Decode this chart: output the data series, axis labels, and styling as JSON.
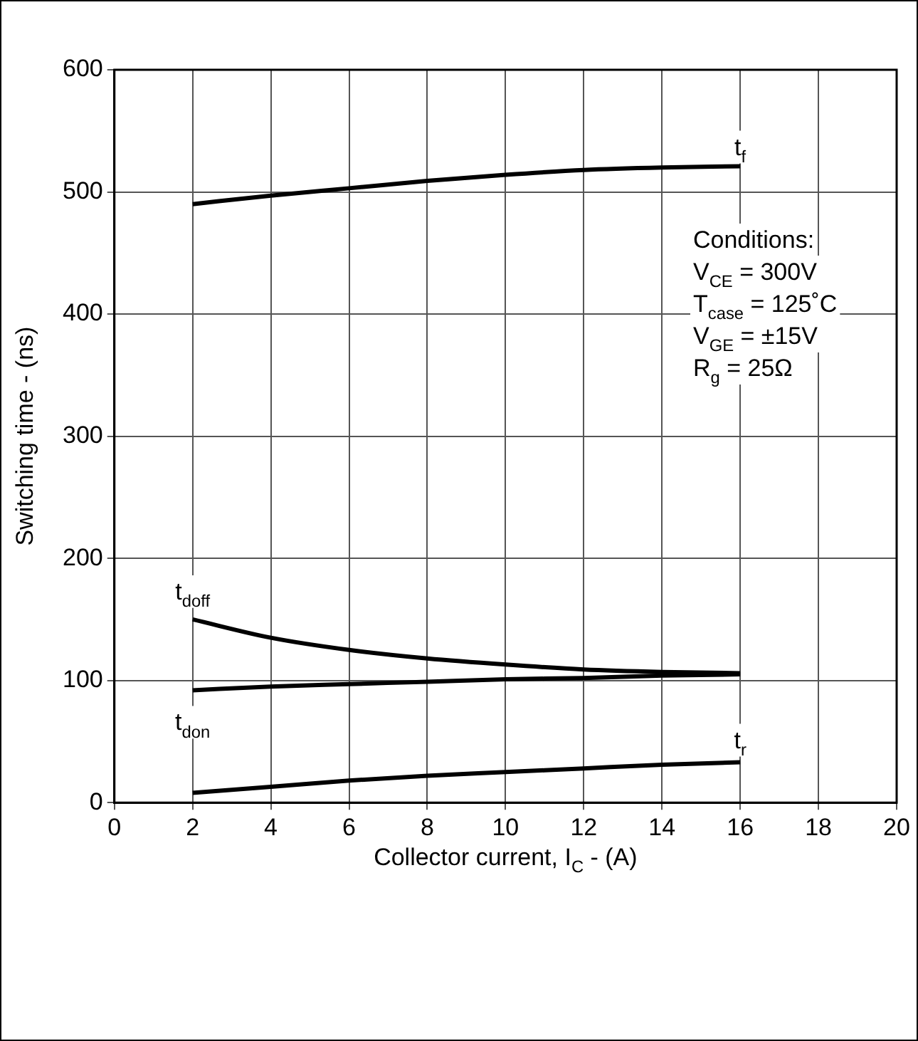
{
  "chart_data": {
    "type": "line",
    "xlabel": "Collector current, I$_{C}$ - (A)",
    "ylabel": "Switching time - (ns)",
    "x": [
      2,
      4,
      6,
      8,
      10,
      12,
      14,
      16
    ],
    "series": [
      {
        "name": "t$_{f}$",
        "color": "#000000",
        "values": [
          490,
          497,
          503,
          509,
          514,
          518,
          520,
          521
        ]
      },
      {
        "name": "t$_{doff}$",
        "color": "#000000",
        "values": [
          150,
          135,
          125,
          118,
          113,
          109,
          107,
          106
        ]
      },
      {
        "name": "t$_{don}$",
        "color": "#000000",
        "values": [
          92,
          95,
          97,
          99,
          101,
          102,
          104,
          105
        ]
      },
      {
        "name": "t$_{r}$",
        "color": "#000000",
        "values": [
          8,
          13,
          18,
          22,
          25,
          28,
          31,
          33
        ]
      }
    ],
    "xlim": [
      0,
      20
    ],
    "xticks": [
      0,
      2,
      4,
      6,
      8,
      10,
      12,
      14,
      16,
      18,
      20
    ],
    "ylim": [
      0,
      600
    ],
    "yticks": [
      0,
      100,
      200,
      300,
      400,
      500,
      600
    ],
    "annotations": [
      "Conditions:",
      "V$_{CE}$ = 300V",
      "T$_{case}$ = 125˚C",
      "V$_{GE}$ = ±15V",
      "R$_{g}$ = 25Ω"
    ],
    "grid": true,
    "legend": false,
    "marker": "none",
    "line_style": "solid"
  }
}
